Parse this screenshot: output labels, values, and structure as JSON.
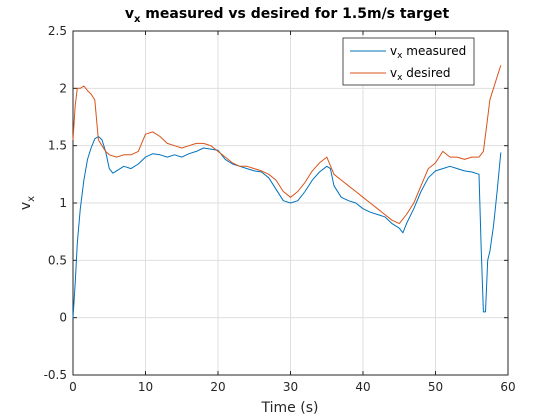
{
  "chart_data": {
    "type": "line",
    "title": {
      "main": "v",
      "sub": "x",
      "rest": " measured vs desired for 1.5m/s target"
    },
    "xlabel": "Time (s)",
    "ylabel": {
      "main": "v",
      "sub": "x"
    },
    "xlim": [
      0,
      60
    ],
    "ylim": [
      -0.5,
      2.5
    ],
    "xticks": [
      0,
      10,
      20,
      30,
      40,
      50,
      60
    ],
    "yticks": [
      -0.5,
      0,
      0.5,
      1,
      1.5,
      2,
      2.5
    ],
    "xtick_labels": [
      "0",
      "10",
      "20",
      "30",
      "40",
      "50",
      "60"
    ],
    "ytick_labels": [
      "-0.5",
      "0",
      "0.5",
      "1",
      "1.5",
      "2",
      "2.5"
    ],
    "grid": true,
    "legend_position": "top-right",
    "series": [
      {
        "name_main": "v",
        "name_sub": "x",
        "name_rest": " measured",
        "color": "#0072BD",
        "x": [
          0,
          0.3,
          0.6,
          1,
          1.5,
          2,
          2.5,
          3,
          3.5,
          4,
          4.5,
          5,
          5.5,
          6,
          7,
          8,
          9,
          10,
          11,
          12,
          13,
          14,
          15,
          16,
          17,
          18,
          19,
          20,
          21,
          22,
          23,
          24,
          25,
          26,
          27,
          28,
          29,
          30,
          31,
          32,
          33,
          34,
          35,
          35.5,
          36,
          37,
          38,
          39,
          40,
          41,
          42,
          43,
          44,
          45,
          45.5,
          46,
          47,
          48,
          49,
          50,
          51,
          52,
          53,
          54,
          55,
          56,
          56.3,
          56.6,
          56.9,
          57.2,
          57.5,
          58,
          58.5,
          59
        ],
        "y": [
          0,
          0.3,
          0.65,
          0.95,
          1.2,
          1.38,
          1.48,
          1.56,
          1.58,
          1.55,
          1.45,
          1.3,
          1.26,
          1.28,
          1.32,
          1.3,
          1.34,
          1.4,
          1.43,
          1.42,
          1.4,
          1.42,
          1.4,
          1.43,
          1.45,
          1.48,
          1.47,
          1.46,
          1.38,
          1.34,
          1.32,
          1.3,
          1.28,
          1.27,
          1.22,
          1.12,
          1.02,
          1.0,
          1.02,
          1.1,
          1.2,
          1.27,
          1.32,
          1.3,
          1.15,
          1.05,
          1.02,
          1.0,
          0.95,
          0.92,
          0.9,
          0.88,
          0.82,
          0.78,
          0.74,
          0.82,
          0.95,
          1.1,
          1.22,
          1.28,
          1.3,
          1.32,
          1.3,
          1.28,
          1.27,
          1.25,
          0.6,
          0.05,
          0.05,
          0.5,
          0.58,
          0.8,
          1.1,
          1.44
        ]
      },
      {
        "name_main": "v",
        "name_sub": "x",
        "name_rest": " desired",
        "color": "#D95319",
        "x": [
          0,
          0.3,
          0.6,
          1,
          1.5,
          2,
          2.5,
          3,
          3.5,
          4,
          4.5,
          5,
          6,
          7,
          8,
          9,
          10,
          11,
          12,
          13,
          14,
          15,
          16,
          17,
          18,
          19,
          20,
          21,
          22,
          23,
          24,
          25,
          26,
          27,
          28,
          29,
          30,
          31,
          32,
          33,
          34,
          35,
          36,
          37,
          38,
          39,
          40,
          41,
          42,
          43,
          44,
          45,
          46,
          47,
          48,
          49,
          50,
          51,
          52,
          53,
          54,
          55,
          56,
          56.6,
          57,
          57.5,
          58,
          58.5,
          59
        ],
        "y": [
          1.55,
          1.85,
          2.0,
          2.0,
          2.02,
          1.98,
          1.95,
          1.9,
          1.55,
          1.5,
          1.45,
          1.42,
          1.4,
          1.42,
          1.42,
          1.45,
          1.6,
          1.62,
          1.58,
          1.52,
          1.5,
          1.48,
          1.5,
          1.52,
          1.52,
          1.5,
          1.45,
          1.4,
          1.35,
          1.32,
          1.32,
          1.3,
          1.28,
          1.25,
          1.2,
          1.1,
          1.05,
          1.1,
          1.18,
          1.28,
          1.35,
          1.4,
          1.25,
          1.2,
          1.15,
          1.1,
          1.05,
          1.0,
          0.95,
          0.9,
          0.85,
          0.82,
          0.9,
          1.0,
          1.15,
          1.3,
          1.35,
          1.45,
          1.4,
          1.4,
          1.38,
          1.4,
          1.4,
          1.45,
          1.65,
          1.9,
          2.0,
          2.1,
          2.2
        ]
      }
    ]
  }
}
